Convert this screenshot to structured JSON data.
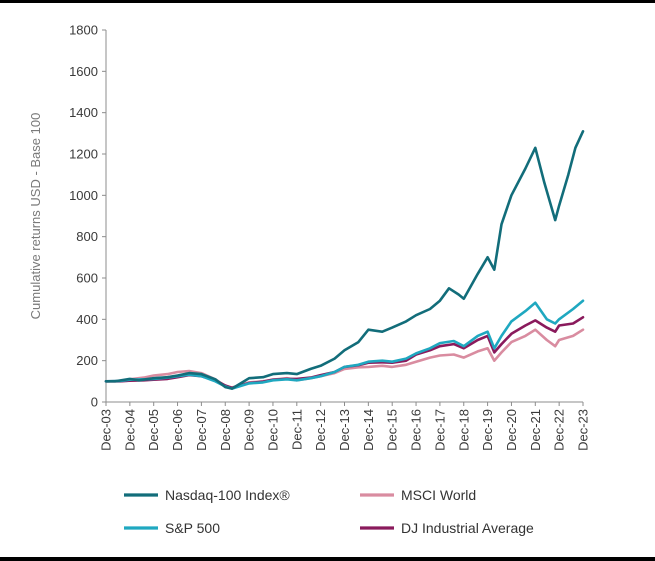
{
  "chart_data": {
    "type": "line",
    "title": "",
    "ylabel": "Cumulative returns USD - Base 100",
    "xlabel": "",
    "ylim": [
      0,
      1800
    ],
    "yticks": [
      "0",
      "200",
      "400",
      "600",
      "800",
      "1000",
      "1200",
      "1400",
      "1600",
      "1800"
    ],
    "xlim": [
      2003.917,
      2023.917
    ],
    "categories": [
      "Dec-03",
      "Dec-04",
      "Dec-05",
      "Dec-06",
      "Dec-07",
      "Dec-08",
      "Dec-09",
      "Dec-10",
      "Dec-11",
      "Dec-12",
      "Dec-13",
      "Dec-14",
      "Dec-15",
      "Dec-16",
      "Dec-17",
      "Dec-18",
      "Dec-19",
      "Dec-20",
      "Dec-21",
      "Dec-22",
      "Dec-23"
    ],
    "grid": false,
    "legend_position": "bottom",
    "series": [
      {
        "name": "MSCI World",
        "color": "#d98ca0",
        "x": [
          2003.917,
          2004.5,
          2004.917,
          2005.5,
          2005.917,
          2006.5,
          2006.917,
          2007.4,
          2007.917,
          2008.5,
          2008.917,
          2009.2,
          2009.917,
          2010.5,
          2010.917,
          2011.5,
          2011.917,
          2012.5,
          2012.917,
          2013.5,
          2013.917,
          2014.5,
          2014.917,
          2015.5,
          2015.917,
          2016.5,
          2016.917,
          2017.5,
          2017.917,
          2018.5,
          2018.917,
          2019.5,
          2019.917,
          2020.2,
          2020.5,
          2020.917,
          2021.5,
          2021.917,
          2022.4,
          2022.75,
          2022.917,
          2023.5,
          2023.917
        ],
        "values": [
          100,
          102,
          110,
          118,
          128,
          135,
          145,
          150,
          140,
          110,
          78,
          70,
          95,
          100,
          108,
          115,
          105,
          115,
          125,
          140,
          160,
          168,
          170,
          175,
          170,
          180,
          195,
          215,
          225,
          230,
          215,
          245,
          260,
          200,
          240,
          290,
          320,
          350,
          300,
          270,
          300,
          320,
          350
        ]
      },
      {
        "name": "DJ Industrial Average",
        "color": "#8a1a5c",
        "x": [
          2003.917,
          2004.5,
          2004.917,
          2005.5,
          2005.917,
          2006.5,
          2006.917,
          2007.4,
          2007.917,
          2008.5,
          2008.917,
          2009.2,
          2009.917,
          2010.5,
          2010.917,
          2011.5,
          2011.917,
          2012.5,
          2012.917,
          2013.5,
          2013.917,
          2014.5,
          2014.917,
          2015.5,
          2015.917,
          2016.5,
          2016.917,
          2017.5,
          2017.917,
          2018.5,
          2018.917,
          2019.5,
          2019.917,
          2020.2,
          2020.5,
          2020.917,
          2021.5,
          2021.917,
          2022.4,
          2022.75,
          2022.917,
          2023.5,
          2023.917
        ],
        "values": [
          100,
          100,
          103,
          105,
          108,
          112,
          120,
          130,
          125,
          105,
          80,
          68,
          92,
          98,
          108,
          112,
          112,
          118,
          130,
          145,
          170,
          178,
          190,
          192,
          190,
          200,
          230,
          250,
          270,
          280,
          260,
          300,
          320,
          240,
          280,
          330,
          370,
          395,
          360,
          340,
          370,
          380,
          410
        ]
      },
      {
        "name": "S&P 500",
        "color": "#1fa8c0",
        "x": [
          2003.917,
          2004.5,
          2004.917,
          2005.5,
          2005.917,
          2006.5,
          2006.917,
          2007.4,
          2007.917,
          2008.5,
          2008.917,
          2009.2,
          2009.917,
          2010.5,
          2010.917,
          2011.5,
          2011.917,
          2012.5,
          2012.917,
          2013.5,
          2013.917,
          2014.5,
          2014.917,
          2015.5,
          2015.917,
          2016.5,
          2016.917,
          2017.5,
          2017.917,
          2018.5,
          2018.917,
          2019.5,
          2019.917,
          2020.2,
          2020.5,
          2020.917,
          2021.5,
          2021.917,
          2022.4,
          2022.75,
          2022.917,
          2023.5,
          2023.917
        ],
        "values": [
          100,
          102,
          108,
          110,
          112,
          118,
          125,
          132,
          125,
          100,
          75,
          65,
          90,
          95,
          105,
          110,
          105,
          115,
          125,
          145,
          170,
          180,
          195,
          200,
          195,
          210,
          235,
          260,
          285,
          295,
          270,
          320,
          340,
          260,
          320,
          390,
          440,
          480,
          400,
          380,
          400,
          450,
          490
        ]
      },
      {
        "name": "Nasdaq-100 Index®",
        "color": "#126d7a",
        "x": [
          2003.917,
          2004.3,
          2004.917,
          2005.3,
          2005.917,
          2006.5,
          2006.917,
          2007.4,
          2007.917,
          2008.5,
          2008.917,
          2009.2,
          2009.917,
          2010.5,
          2010.917,
          2011.5,
          2011.917,
          2012.5,
          2012.917,
          2013.5,
          2013.917,
          2014.5,
          2014.917,
          2015.5,
          2015.917,
          2016.5,
          2016.917,
          2017.5,
          2017.917,
          2018.3,
          2018.7,
          2018.917,
          2019.5,
          2019.917,
          2020.2,
          2020.5,
          2020.917,
          2021.5,
          2021.917,
          2022.3,
          2022.6,
          2022.75,
          2022.917,
          2023.3,
          2023.6,
          2023.917
        ],
        "values": [
          100,
          100,
          112,
          105,
          115,
          120,
          128,
          140,
          135,
          110,
          72,
          65,
          115,
          120,
          135,
          140,
          135,
          160,
          175,
          210,
          250,
          290,
          350,
          340,
          360,
          390,
          420,
          450,
          490,
          550,
          520,
          500,
          620,
          700,
          640,
          860,
          1000,
          1130,
          1230,
          1060,
          940,
          880,
          950,
          1100,
          1230,
          1310
        ]
      }
    ]
  },
  "legend": {
    "items": [
      {
        "label": "Nasdaq-100 Index®",
        "color": "#126d7a"
      },
      {
        "label": "MSCI World",
        "color": "#d98ca0"
      },
      {
        "label": "S&P 500",
        "color": "#1fa8c0"
      },
      {
        "label": "DJ Industrial Average",
        "color": "#8a1a5c"
      }
    ]
  }
}
